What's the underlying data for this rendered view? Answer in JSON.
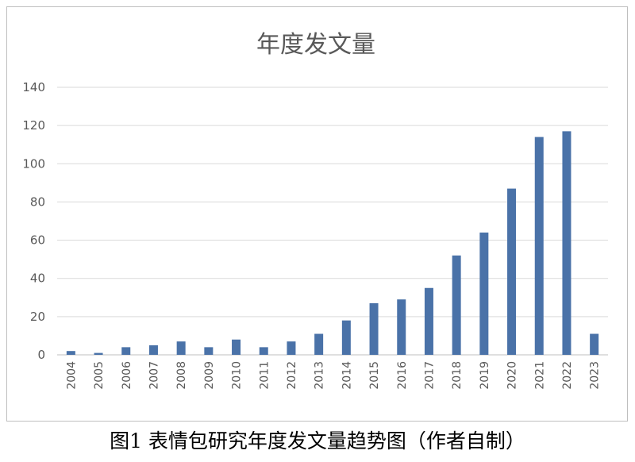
{
  "chart_data": {
    "type": "bar",
    "title": "年度发文量",
    "categories": [
      "2004",
      "2005",
      "2006",
      "2007",
      "2008",
      "2009",
      "2010",
      "2011",
      "2012",
      "2013",
      "2014",
      "2015",
      "2016",
      "2017",
      "2018",
      "2019",
      "2020",
      "2021",
      "2022",
      "2023"
    ],
    "values": [
      2,
      1,
      4,
      5,
      7,
      4,
      8,
      4,
      7,
      11,
      18,
      27,
      29,
      35,
      52,
      64,
      87,
      114,
      117,
      11
    ],
    "ylim": [
      0,
      140
    ],
    "yticks": [
      0,
      20,
      40,
      60,
      80,
      100,
      120,
      140
    ],
    "grid": true,
    "bar_color": "#4a72a8"
  },
  "caption": "图1 表情包研究年度发文量趋势图（作者自制）"
}
